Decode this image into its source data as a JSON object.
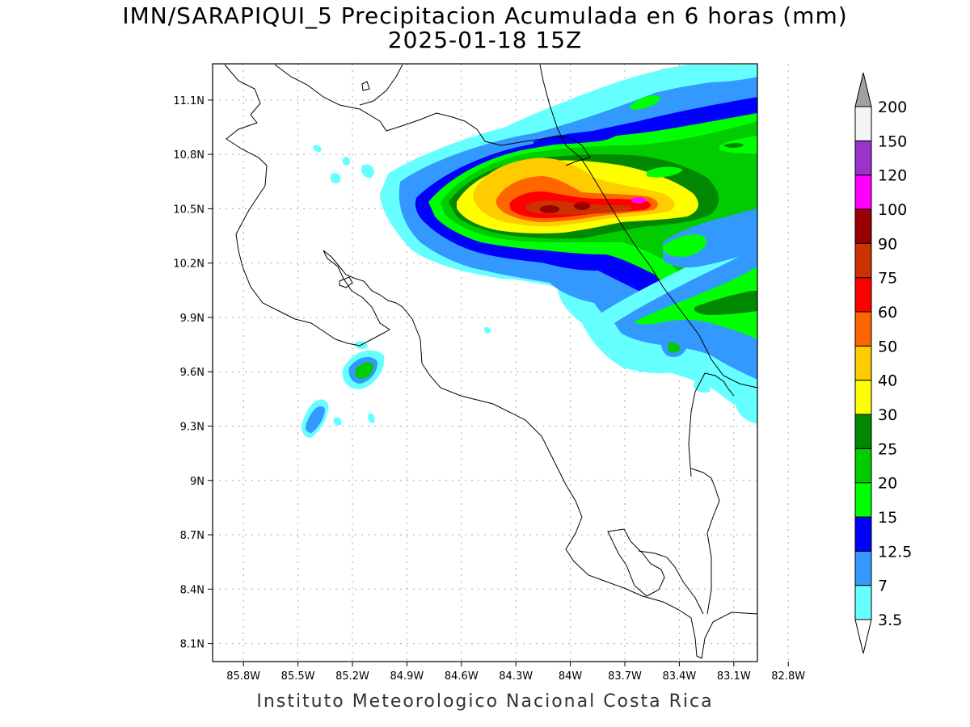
{
  "title": {
    "line1": "IMN/SARAPIQUI_5 Precipitacion Acumulada en 6 horas (mm)",
    "line2": "2025-01-18 15Z"
  },
  "footer": "Instituto Meteorologico Nacional Costa Rica",
  "map": {
    "lat_range": [
      8.0,
      11.3
    ],
    "lon_range": [
      -85.97,
      -82.97
    ],
    "lat_ticks": [
      {
        "value": 8.1,
        "label": "8.1N"
      },
      {
        "value": 8.4,
        "label": "8.4N"
      },
      {
        "value": 8.7,
        "label": "8.7N"
      },
      {
        "value": 9.0,
        "label": "9N"
      },
      {
        "value": 9.3,
        "label": "9.3N"
      },
      {
        "value": 9.6,
        "label": "9.6N"
      },
      {
        "value": 9.9,
        "label": "9.9N"
      },
      {
        "value": 10.2,
        "label": "10.2N"
      },
      {
        "value": 10.5,
        "label": "10.5N"
      },
      {
        "value": 10.8,
        "label": "10.8N"
      },
      {
        "value": 11.1,
        "label": "11.1N"
      }
    ],
    "lon_ticks": [
      {
        "value": -85.8,
        "label": "85.8W"
      },
      {
        "value": -85.5,
        "label": "85.5W"
      },
      {
        "value": -85.2,
        "label": "85.2W"
      },
      {
        "value": -84.9,
        "label": "84.9W"
      },
      {
        "value": -84.6,
        "label": "84.6W"
      },
      {
        "value": -84.3,
        "label": "84.3W"
      },
      {
        "value": -84.0,
        "label": "84W"
      },
      {
        "value": -83.7,
        "label": "83.7W"
      },
      {
        "value": -83.4,
        "label": "83.4W"
      },
      {
        "value": -83.1,
        "label": "83.1W"
      },
      {
        "value": -82.8,
        "label": "82.8W"
      }
    ],
    "grid": true
  },
  "legend": {
    "levels": [
      {
        "label": "3.5",
        "color": "#66ffff"
      },
      {
        "label": "7",
        "color": "#3399ff"
      },
      {
        "label": "12.5",
        "color": "#0000ff"
      },
      {
        "label": "15",
        "color": "#00ff00"
      },
      {
        "label": "20",
        "color": "#00cc00"
      },
      {
        "label": "25",
        "color": "#008800"
      },
      {
        "label": "30",
        "color": "#ffff00"
      },
      {
        "label": "40",
        "color": "#ffcc00"
      },
      {
        "label": "50",
        "color": "#ff6600"
      },
      {
        "label": "60",
        "color": "#ff0000"
      },
      {
        "label": "75",
        "color": "#cc3300"
      },
      {
        "label": "90",
        "color": "#990000"
      },
      {
        "label": "100",
        "color": "#ff00ff"
      },
      {
        "label": "120",
        "color": "#9933cc"
      },
      {
        "label": "150",
        "color": "#f5f5f5"
      },
      {
        "label": "200",
        "color": "#a0a0a0"
      }
    ]
  }
}
